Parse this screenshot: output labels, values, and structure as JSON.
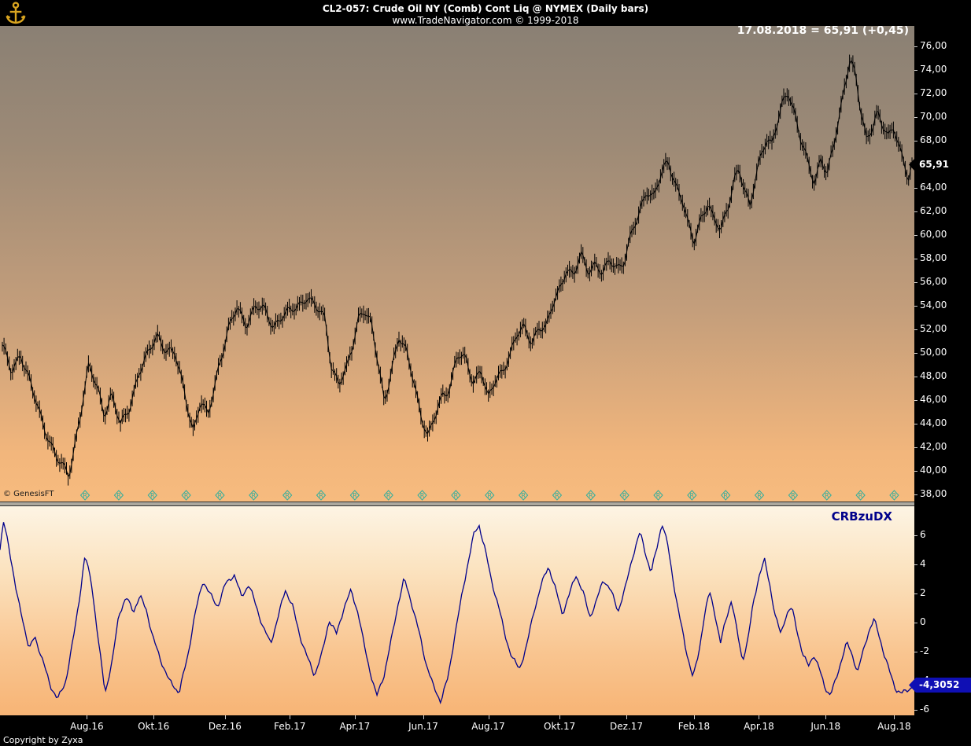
{
  "header": {
    "title": "CL2-057:  Crude Oil NY (Comb) Cont Liq @ NYMEX  (Daily bars)",
    "subtitle": "www.TradeNavigator.com © 1999-2018",
    "logo_icon": "anchor-icon"
  },
  "quote": {
    "annotation": "17.08.2018 = 65,91 (+0,45)"
  },
  "price_panel": {
    "tag_label": "65,91",
    "watermark": "© GenesisFT",
    "axis": {
      "values": [
        76,
        74,
        72,
        70,
        68,
        66,
        64,
        62,
        60,
        58,
        56,
        54,
        52,
        50,
        48,
        46,
        44,
        42,
        40,
        38
      ],
      "labels": [
        "76,00",
        "74,00",
        "72,00",
        "70,00",
        "68,00",
        "66,00",
        "64,00",
        "62,00",
        "60,00",
        "58,00",
        "56,00",
        "54,00",
        "52,00",
        "50,00",
        "48,00",
        "46,00",
        "44,00",
        "42,00",
        "40,00",
        "38,00"
      ]
    },
    "rollover_markers": {
      "label": "R",
      "count": 25,
      "start_frac": 0.093,
      "end_frac": 0.978,
      "color": "#2fae9e"
    }
  },
  "indicator_panel": {
    "name": "CRBzuDX",
    "tag_label": "-4,3052",
    "axis": {
      "values": [
        6,
        4,
        2,
        0,
        -2,
        -4,
        -6
      ],
      "labels": [
        "6",
        "4",
        "2",
        "0",
        "-2",
        "-4",
        "-6"
      ]
    }
  },
  "x_axis": {
    "labels": [
      "Aug.16",
      "Okt.16",
      "Dez.16",
      "Feb.17",
      "Apr.17",
      "Jun.17",
      "Aug.17",
      "Okt.17",
      "Dez.17",
      "Feb.18",
      "Apr.18",
      "Jun.18",
      "Aug.18"
    ],
    "fractions": [
      0.095,
      0.168,
      0.246,
      0.317,
      0.388,
      0.463,
      0.534,
      0.612,
      0.685,
      0.759,
      0.83,
      0.903,
      0.978
    ]
  },
  "footer": {
    "copyright": "Copyright by Zyxa"
  },
  "colors": {
    "bar": "#000000",
    "indicator_line": "#00008b",
    "marker": "#2fae9e",
    "price_tag_bg": "#000000",
    "indicator_tag_bg": "#0f0fb4",
    "axis_bg": "#000000",
    "logo_gold": "#d9a520"
  },
  "chart_data": [
    {
      "type": "bar",
      "name": "Crude Oil NY (Comb) Cont Liq @ NYMEX",
      "timeframe": "Daily bars",
      "ylim": [
        38,
        76
      ],
      "ytick_step": 2,
      "last_date": "17.08.2018",
      "last_close": 65.91,
      "change": 0.45,
      "x_range": [
        "Jun 2016",
        "Aug 2018"
      ],
      "points_frac_close": [
        [
          0.0,
          50.5
        ],
        [
          0.01,
          48.5
        ],
        [
          0.02,
          50.0
        ],
        [
          0.03,
          47.5
        ],
        [
          0.045,
          44.0
        ],
        [
          0.06,
          41.0
        ],
        [
          0.073,
          39.6
        ],
        [
          0.085,
          44.5
        ],
        [
          0.095,
          48.8
        ],
        [
          0.105,
          47.0
        ],
        [
          0.112,
          44.9
        ],
        [
          0.12,
          46.4
        ],
        [
          0.13,
          43.8
        ],
        [
          0.14,
          45.5
        ],
        [
          0.15,
          48.3
        ],
        [
          0.16,
          49.8
        ],
        [
          0.17,
          51.6
        ],
        [
          0.18,
          50.3
        ],
        [
          0.19,
          49.8
        ],
        [
          0.2,
          46.8
        ],
        [
          0.21,
          43.4
        ],
        [
          0.218,
          45.8
        ],
        [
          0.226,
          44.6
        ],
        [
          0.238,
          49.0
        ],
        [
          0.248,
          51.8
        ],
        [
          0.258,
          53.8
        ],
        [
          0.268,
          52.5
        ],
        [
          0.278,
          53.9
        ],
        [
          0.288,
          53.6
        ],
        [
          0.298,
          52.3
        ],
        [
          0.308,
          53.2
        ],
        [
          0.318,
          53.5
        ],
        [
          0.328,
          54.2
        ],
        [
          0.335,
          54.9
        ],
        [
          0.345,
          53.8
        ],
        [
          0.355,
          52.8
        ],
        [
          0.362,
          48.8
        ],
        [
          0.37,
          47.5
        ],
        [
          0.378,
          48.4
        ],
        [
          0.385,
          50.5
        ],
        [
          0.392,
          53.2
        ],
        [
          0.398,
          53.8
        ],
        [
          0.405,
          52.6
        ],
        [
          0.412,
          49.5
        ],
        [
          0.42,
          45.8
        ],
        [
          0.428,
          48.8
        ],
        [
          0.436,
          51.3
        ],
        [
          0.444,
          50.0
        ],
        [
          0.452,
          47.8
        ],
        [
          0.46,
          44.9
        ],
        [
          0.468,
          42.8
        ],
        [
          0.476,
          44.6
        ],
        [
          0.484,
          46.5
        ],
        [
          0.492,
          47.1
        ],
        [
          0.5,
          49.8
        ],
        [
          0.51,
          49.3
        ],
        [
          0.518,
          47.5
        ],
        [
          0.526,
          48.8
        ],
        [
          0.534,
          46.0
        ],
        [
          0.542,
          47.6
        ],
        [
          0.55,
          48.6
        ],
        [
          0.558,
          49.9
        ],
        [
          0.566,
          51.5
        ],
        [
          0.574,
          52.1
        ],
        [
          0.582,
          51.0
        ],
        [
          0.59,
          52.2
        ],
        [
          0.598,
          52.0
        ],
        [
          0.606,
          54.3
        ],
        [
          0.614,
          55.8
        ],
        [
          0.62,
          57.2
        ],
        [
          0.628,
          56.4
        ],
        [
          0.636,
          58.3
        ],
        [
          0.644,
          57.1
        ],
        [
          0.652,
          57.6
        ],
        [
          0.66,
          56.6
        ],
        [
          0.668,
          57.8
        ],
        [
          0.676,
          57.3
        ],
        [
          0.684,
          57.9
        ],
        [
          0.692,
          60.1
        ],
        [
          0.7,
          61.7
        ],
        [
          0.708,
          63.9
        ],
        [
          0.716,
          63.3
        ],
        [
          0.724,
          65.0
        ],
        [
          0.732,
          66.2
        ],
        [
          0.74,
          64.4
        ],
        [
          0.748,
          63.0
        ],
        [
          0.754,
          60.8
        ],
        [
          0.76,
          59.2
        ],
        [
          0.768,
          61.4
        ],
        [
          0.776,
          62.9
        ],
        [
          0.782,
          61.3
        ],
        [
          0.79,
          60.3
        ],
        [
          0.798,
          62.4
        ],
        [
          0.804,
          64.8
        ],
        [
          0.81,
          65.7
        ],
        [
          0.816,
          63.7
        ],
        [
          0.822,
          62.2
        ],
        [
          0.828,
          64.9
        ],
        [
          0.834,
          66.9
        ],
        [
          0.84,
          68.3
        ],
        [
          0.846,
          67.6
        ],
        [
          0.852,
          69.4
        ],
        [
          0.858,
          71.2
        ],
        [
          0.864,
          72.3
        ],
        [
          0.87,
          70.7
        ],
        [
          0.878,
          68.0
        ],
        [
          0.886,
          65.9
        ],
        [
          0.893,
          64.4
        ],
        [
          0.9,
          66.7
        ],
        [
          0.907,
          65.2
        ],
        [
          0.914,
          67.5
        ],
        [
          0.921,
          70.3
        ],
        [
          0.927,
          73.2
        ],
        [
          0.932,
          75.2
        ],
        [
          0.938,
          73.6
        ],
        [
          0.944,
          70.2
        ],
        [
          0.95,
          67.9
        ],
        [
          0.956,
          69.1
        ],
        [
          0.962,
          70.6
        ],
        [
          0.968,
          69.4
        ],
        [
          0.974,
          68.2
        ],
        [
          0.98,
          69.0
        ],
        [
          0.986,
          67.4
        ],
        [
          0.992,
          66.2
        ],
        [
          0.996,
          64.9
        ],
        [
          1.0,
          65.91
        ]
      ]
    },
    {
      "type": "line",
      "name": "CRBzuDX",
      "ylim": [
        -6,
        7
      ],
      "last_value": -4.3052,
      "points_frac_value": [
        [
          0.0,
          5.0
        ],
        [
          0.004,
          6.9
        ],
        [
          0.01,
          5.2
        ],
        [
          0.018,
          2.0
        ],
        [
          0.025,
          0.2
        ],
        [
          0.032,
          -1.9
        ],
        [
          0.038,
          -0.9
        ],
        [
          0.045,
          -2.3
        ],
        [
          0.055,
          -4.3
        ],
        [
          0.063,
          -5.3
        ],
        [
          0.072,
          -4.0
        ],
        [
          0.08,
          -1.2
        ],
        [
          0.088,
          2.2
        ],
        [
          0.093,
          4.6
        ],
        [
          0.1,
          2.8
        ],
        [
          0.108,
          -1.5
        ],
        [
          0.115,
          -4.8
        ],
        [
          0.123,
          -2.6
        ],
        [
          0.13,
          0.6
        ],
        [
          0.138,
          1.7
        ],
        [
          0.146,
          0.8
        ],
        [
          0.153,
          1.8
        ],
        [
          0.16,
          0.9
        ],
        [
          0.168,
          -1.2
        ],
        [
          0.176,
          -2.6
        ],
        [
          0.185,
          -4.0
        ],
        [
          0.196,
          -4.8
        ],
        [
          0.205,
          -2.4
        ],
        [
          0.213,
          0.5
        ],
        [
          0.222,
          2.9
        ],
        [
          0.23,
          1.9
        ],
        [
          0.238,
          1.1
        ],
        [
          0.247,
          2.7
        ],
        [
          0.256,
          3.3
        ],
        [
          0.264,
          1.8
        ],
        [
          0.272,
          2.6
        ],
        [
          0.28,
          1.2
        ],
        [
          0.288,
          -0.4
        ],
        [
          0.296,
          -1.4
        ],
        [
          0.304,
          0.3
        ],
        [
          0.312,
          2.3
        ],
        [
          0.32,
          1.1
        ],
        [
          0.328,
          -0.9
        ],
        [
          0.336,
          -2.4
        ],
        [
          0.344,
          -3.6
        ],
        [
          0.352,
          -2.2
        ],
        [
          0.36,
          0.2
        ],
        [
          0.368,
          -0.8
        ],
        [
          0.376,
          1.0
        ],
        [
          0.384,
          2.2
        ],
        [
          0.392,
          0.6
        ],
        [
          0.398,
          -1.5
        ],
        [
          0.405,
          -3.4
        ],
        [
          0.412,
          -5.1
        ],
        [
          0.42,
          -3.6
        ],
        [
          0.428,
          -1.2
        ],
        [
          0.435,
          1.2
        ],
        [
          0.442,
          3.0
        ],
        [
          0.45,
          1.4
        ],
        [
          0.458,
          -0.6
        ],
        [
          0.466,
          -2.8
        ],
        [
          0.474,
          -4.4
        ],
        [
          0.482,
          -5.4
        ],
        [
          0.49,
          -3.8
        ],
        [
          0.497,
          -1.0
        ],
        [
          0.505,
          1.8
        ],
        [
          0.512,
          4.2
        ],
        [
          0.518,
          6.0
        ],
        [
          0.524,
          6.7
        ],
        [
          0.53,
          5.2
        ],
        [
          0.537,
          3.0
        ],
        [
          0.545,
          1.2
        ],
        [
          0.552,
          -0.8
        ],
        [
          0.56,
          -2.4
        ],
        [
          0.568,
          -3.2
        ],
        [
          0.576,
          -1.6
        ],
        [
          0.584,
          0.8
        ],
        [
          0.592,
          2.6
        ],
        [
          0.6,
          3.9
        ],
        [
          0.608,
          2.2
        ],
        [
          0.615,
          0.6
        ],
        [
          0.622,
          1.8
        ],
        [
          0.63,
          3.3
        ],
        [
          0.638,
          2.0
        ],
        [
          0.645,
          0.4
        ],
        [
          0.652,
          1.4
        ],
        [
          0.66,
          3.0
        ],
        [
          0.668,
          2.2
        ],
        [
          0.676,
          0.8
        ],
        [
          0.684,
          2.4
        ],
        [
          0.692,
          4.6
        ],
        [
          0.7,
          6.2
        ],
        [
          0.706,
          4.8
        ],
        [
          0.712,
          3.4
        ],
        [
          0.718,
          5.0
        ],
        [
          0.724,
          6.9
        ],
        [
          0.73,
          5.4
        ],
        [
          0.736,
          3.0
        ],
        [
          0.742,
          0.8
        ],
        [
          0.75,
          -1.8
        ],
        [
          0.758,
          -3.8
        ],
        [
          0.764,
          -2.2
        ],
        [
          0.77,
          0.4
        ],
        [
          0.776,
          2.1
        ],
        [
          0.782,
          0.6
        ],
        [
          0.788,
          -1.4
        ],
        [
          0.794,
          0.2
        ],
        [
          0.8,
          1.6
        ],
        [
          0.806,
          -0.6
        ],
        [
          0.812,
          -2.6
        ],
        [
          0.818,
          -1.2
        ],
        [
          0.824,
          1.4
        ],
        [
          0.83,
          3.2
        ],
        [
          0.836,
          4.3
        ],
        [
          0.842,
          2.6
        ],
        [
          0.848,
          0.4
        ],
        [
          0.854,
          -0.8
        ],
        [
          0.86,
          0.6
        ],
        [
          0.866,
          1.0
        ],
        [
          0.872,
          -0.6
        ],
        [
          0.878,
          -2.2
        ],
        [
          0.884,
          -3.0
        ],
        [
          0.89,
          -2.2
        ],
        [
          0.896,
          -3.2
        ],
        [
          0.902,
          -4.4
        ],
        [
          0.908,
          -5.0
        ],
        [
          0.914,
          -4.0
        ],
        [
          0.92,
          -2.6
        ],
        [
          0.926,
          -1.4
        ],
        [
          0.932,
          -2.2
        ],
        [
          0.938,
          -3.4
        ],
        [
          0.944,
          -2.0
        ],
        [
          0.95,
          -0.6
        ],
        [
          0.956,
          0.2
        ],
        [
          0.962,
          -1.0
        ],
        [
          0.968,
          -2.4
        ],
        [
          0.974,
          -3.6
        ],
        [
          0.98,
          -4.6
        ],
        [
          0.986,
          -4.9
        ],
        [
          0.993,
          -4.6
        ],
        [
          1.0,
          -4.3052
        ]
      ]
    }
  ]
}
